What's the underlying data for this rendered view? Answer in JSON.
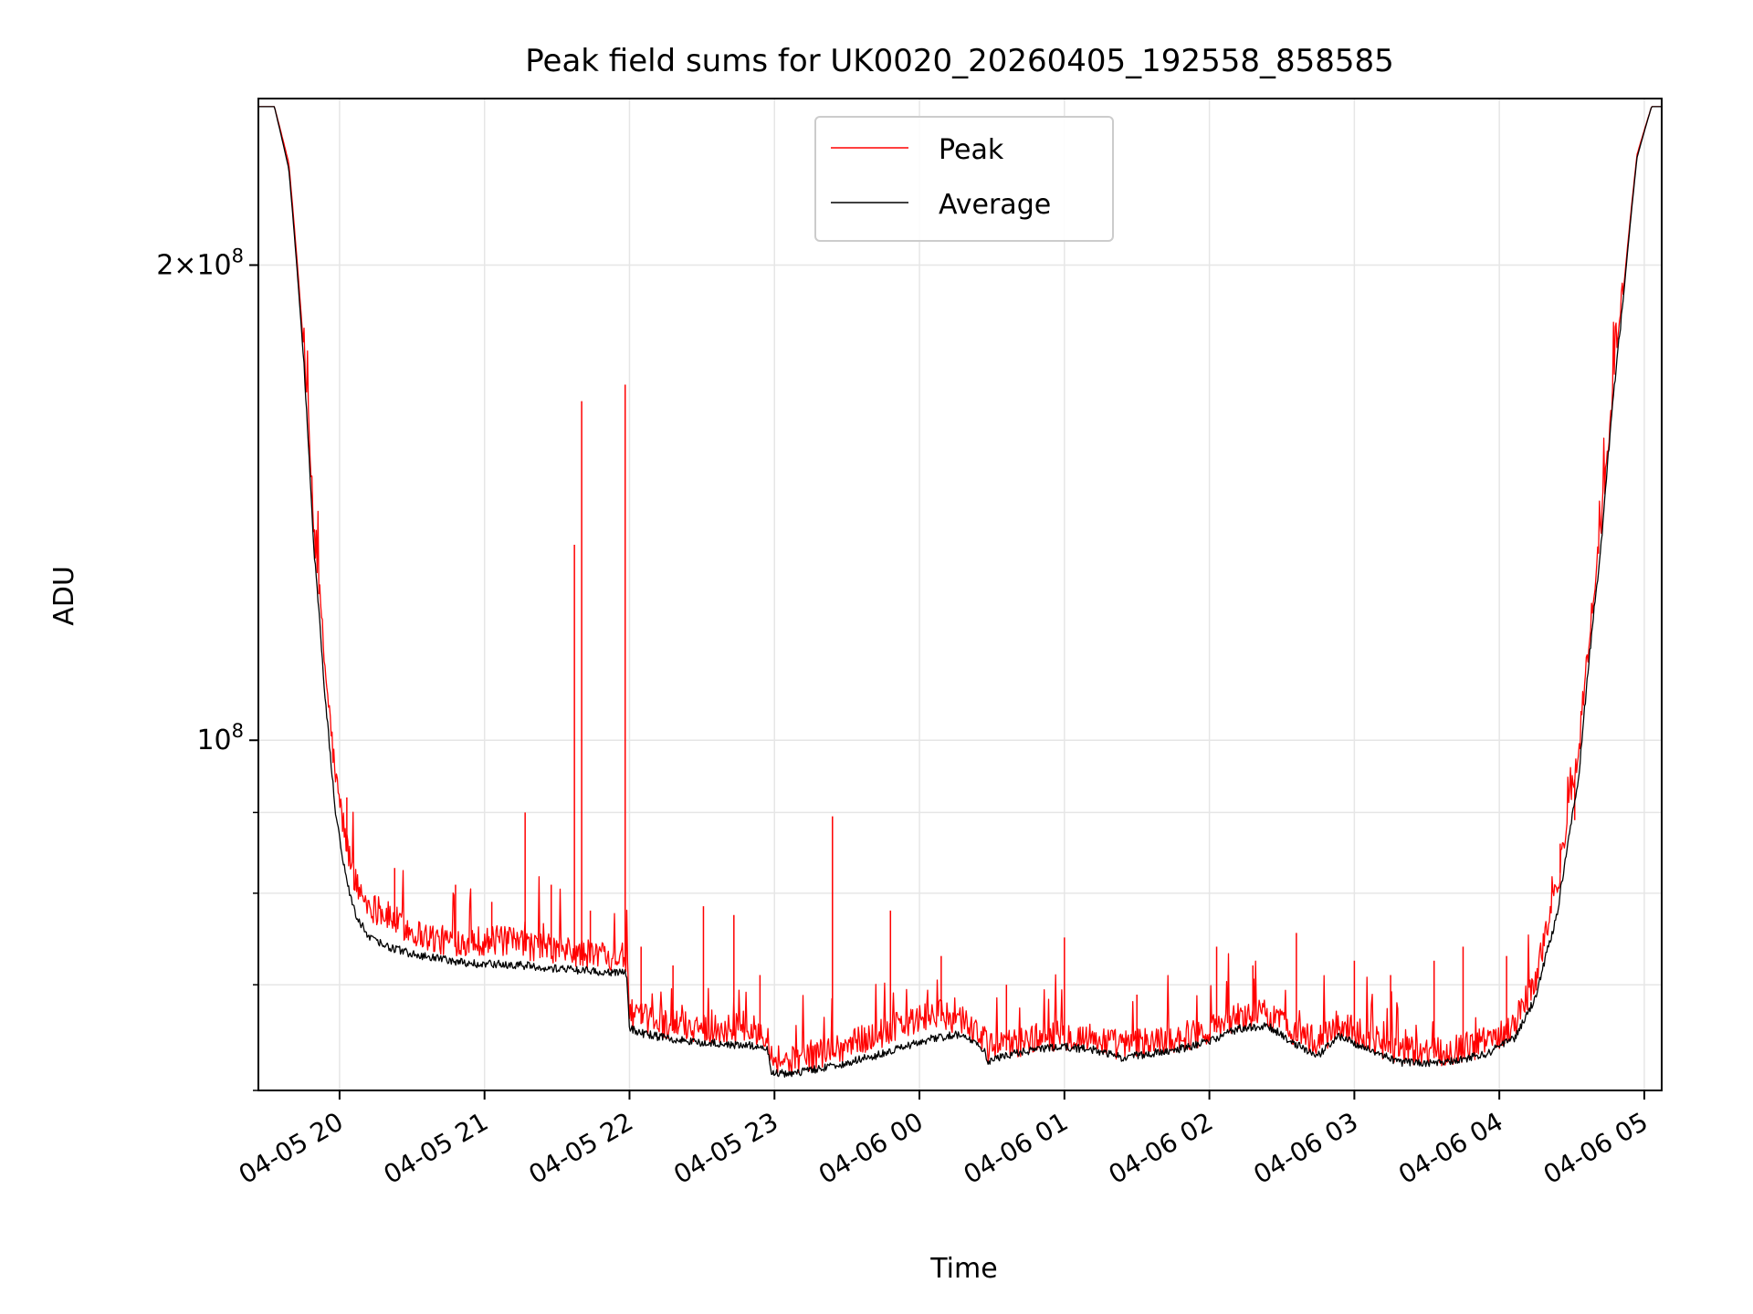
{
  "chart_data": {
    "type": "line",
    "title": "Peak field sums for UK0020_20260405_192558_858585",
    "xlabel": "Time",
    "ylabel": "ADU",
    "yscale": "log",
    "grid": true,
    "legend_position": "upper center",
    "x_unit": "hours since 2026-04-05 00:00",
    "xlim": [
      19.44,
      29.12
    ],
    "ylim": [
      60000000,
      255000000
    ],
    "x_ticks": [
      {
        "value": 20,
        "label": "04-05 20"
      },
      {
        "value": 21,
        "label": "04-05 21"
      },
      {
        "value": 22,
        "label": "04-05 22"
      },
      {
        "value": 23,
        "label": "04-05 23"
      },
      {
        "value": 24,
        "label": "04-06 00"
      },
      {
        "value": 25,
        "label": "04-06 01"
      },
      {
        "value": 26,
        "label": "04-06 02"
      },
      {
        "value": 27,
        "label": "04-06 03"
      },
      {
        "value": 28,
        "label": "04-06 04"
      },
      {
        "value": 29,
        "label": "04-06 05"
      }
    ],
    "y_major_ticks": [
      {
        "value": 100000000,
        "base": "10",
        "exp": "8"
      },
      {
        "value": 200000000,
        "mant": "2",
        "base": "10",
        "exp": "8"
      }
    ],
    "y_minor_ticks": [
      60000000,
      70000000,
      80000000,
      90000000
    ],
    "series": [
      {
        "name": "Peak",
        "color": "#ff0000",
        "x": [
          19.44,
          19.55,
          19.65,
          19.75,
          19.82,
          19.9,
          19.97,
          20.05,
          20.12,
          20.2,
          20.3,
          20.5,
          20.7,
          20.9,
          21.1,
          21.3,
          21.5,
          21.7,
          21.9,
          21.98,
          22.0,
          22.1,
          22.3,
          22.5,
          22.7,
          22.95,
          22.98,
          23.1,
          23.3,
          23.5,
          23.7,
          23.9,
          24.1,
          24.3,
          24.45,
          24.47,
          24.6,
          24.8,
          25.0,
          25.2,
          25.4,
          25.6,
          25.8,
          26.0,
          26.2,
          26.4,
          26.6,
          26.75,
          26.9,
          27.1,
          27.3,
          27.5,
          27.7,
          27.9,
          28.1,
          28.25,
          28.4,
          28.55,
          28.7,
          28.85,
          28.95,
          29.05,
          29.12
        ],
        "y": [
          252000000,
          252000000,
          232000000,
          178000000,
          136000000,
          110000000,
          94000000,
          85000000,
          80000000,
          78000000,
          77000000,
          75000000,
          74000000,
          74000000,
          74000000,
          73500000,
          73000000,
          72500000,
          72500000,
          72000000,
          66500000,
          66000000,
          65500000,
          65200000,
          65000000,
          64800000,
          62500000,
          62000000,
          62800000,
          63500000,
          64500000,
          65500000,
          66500000,
          66000000,
          64000000,
          63200000,
          63600000,
          64200000,
          64500000,
          64200000,
          63500000,
          63900000,
          64300000,
          65000000,
          66200000,
          66500000,
          64800000,
          63800000,
          65600000,
          64300000,
          63000000,
          62800000,
          63200000,
          63800000,
          65500000,
          70000000,
          80000000,
          98000000,
          135000000,
          190000000,
          235000000,
          252000000,
          252000000
        ],
        "spikes": [
          {
            "x": 20.05,
            "y": 92000000
          },
          {
            "x": 20.38,
            "y": 83000000
          },
          {
            "x": 20.8,
            "y": 81000000
          },
          {
            "x": 21.05,
            "y": 79000000
          },
          {
            "x": 21.28,
            "y": 90000000
          },
          {
            "x": 21.46,
            "y": 81000000
          },
          {
            "x": 21.62,
            "y": 133000000
          },
          {
            "x": 21.67,
            "y": 164000000
          },
          {
            "x": 21.73,
            "y": 78000000
          },
          {
            "x": 21.97,
            "y": 168000000
          },
          {
            "x": 22.08,
            "y": 74000000
          },
          {
            "x": 22.3,
            "y": 72000000
          },
          {
            "x": 22.51,
            "y": 78500000
          },
          {
            "x": 22.72,
            "y": 77500000
          },
          {
            "x": 22.9,
            "y": 71000000
          },
          {
            "x": 23.4,
            "y": 89500000
          },
          {
            "x": 23.8,
            "y": 78000000
          },
          {
            "x": 24.15,
            "y": 73000000
          },
          {
            "x": 24.6,
            "y": 70000000
          },
          {
            "x": 25.0,
            "y": 75000000
          },
          {
            "x": 25.5,
            "y": 69000000
          },
          {
            "x": 26.05,
            "y": 74000000
          },
          {
            "x": 26.3,
            "y": 72000000
          },
          {
            "x": 26.6,
            "y": 75500000
          },
          {
            "x": 27.0,
            "y": 72500000
          },
          {
            "x": 27.25,
            "y": 71000000
          },
          {
            "x": 27.55,
            "y": 72500000
          },
          {
            "x": 27.75,
            "y": 74000000
          },
          {
            "x": 28.05,
            "y": 73000000
          },
          {
            "x": 28.42,
            "y": 86000000
          },
          {
            "x": 28.52,
            "y": 89000000
          }
        ]
      },
      {
        "name": "Average",
        "color": "#000000",
        "x": [
          19.44,
          19.55,
          19.65,
          19.75,
          19.82,
          19.9,
          19.97,
          20.05,
          20.12,
          20.2,
          20.3,
          20.5,
          20.7,
          20.9,
          21.1,
          21.3,
          21.5,
          21.7,
          21.9,
          21.98,
          22.0,
          22.1,
          22.3,
          22.5,
          22.7,
          22.95,
          22.98,
          23.1,
          23.3,
          23.5,
          23.7,
          23.9,
          24.1,
          24.3,
          24.45,
          24.47,
          24.6,
          24.8,
          25.0,
          25.2,
          25.4,
          25.6,
          25.8,
          26.0,
          26.2,
          26.4,
          26.6,
          26.75,
          26.9,
          27.1,
          27.3,
          27.5,
          27.7,
          27.9,
          28.1,
          28.25,
          28.4,
          28.55,
          28.7,
          28.85,
          28.95,
          29.05,
          29.12
        ],
        "y": [
          252000000,
          252000000,
          230000000,
          175000000,
          133000000,
          106000000,
          90000000,
          81000000,
          77000000,
          75000000,
          74000000,
          73000000,
          72500000,
          72000000,
          72000000,
          71800000,
          71500000,
          71300000,
          71100000,
          71000000,
          65500000,
          65000000,
          64500000,
          64200000,
          64000000,
          63800000,
          61500000,
          61300000,
          61800000,
          62300000,
          63000000,
          63800000,
          64600000,
          65000000,
          63300000,
          62500000,
          63000000,
          63500000,
          63800000,
          63500000,
          62800000,
          63200000,
          63600000,
          64300000,
          65500000,
          65800000,
          64000000,
          63000000,
          64800000,
          63500000,
          62400000,
          62200000,
          62500000,
          63100000,
          64500000,
          68500000,
          77500000,
          95000000,
          132000000,
          188000000,
          234000000,
          252000000,
          252000000
        ]
      }
    ]
  }
}
